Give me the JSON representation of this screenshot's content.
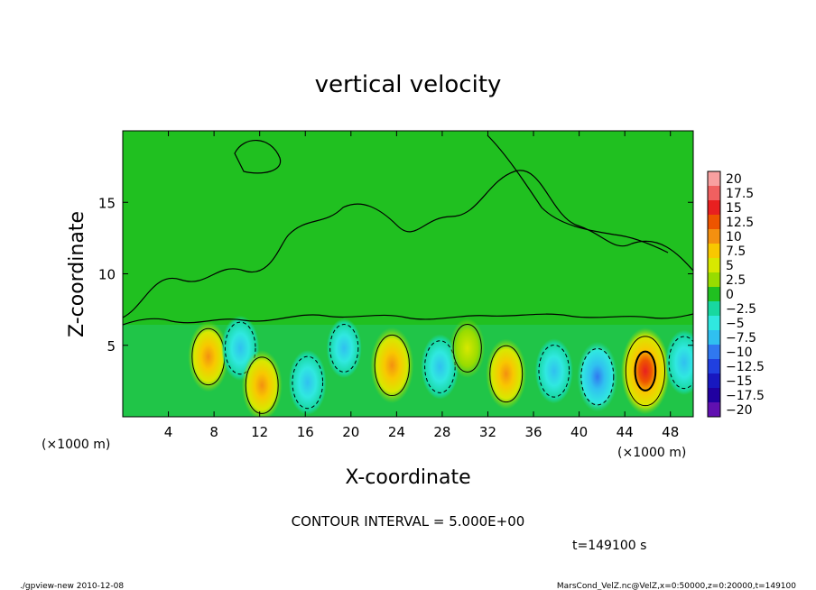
{
  "chart_data": {
    "type": "heatmap",
    "title": "vertical velocity",
    "xlabel": "X-coordinate",
    "ylabel": "Z-coordinate",
    "x_unit_label": "(×1000 m)",
    "x_unit_label_right": "(×1000 m)",
    "xlim": [
      0,
      50
    ],
    "ylim": [
      0,
      20
    ],
    "x_ticks": [
      4,
      8,
      12,
      16,
      20,
      24,
      28,
      32,
      36,
      40,
      44,
      48
    ],
    "y_ticks": [
      5,
      10,
      15
    ],
    "colorbar": {
      "labels": [
        "20",
        "17.5",
        "15",
        "12.5",
        "10",
        "7.5",
        "5",
        "2.5",
        "0",
        "−2.5",
        "−5",
        "−7.5",
        "−10",
        "−12.5",
        "−15",
        "−17.5",
        "−20"
      ],
      "colors": [
        "#f8a0a0",
        "#f06060",
        "#e82020",
        "#ee5500",
        "#f49010",
        "#f8c800",
        "#d8e800",
        "#98dc00",
        "#20c020",
        "#18d8a0",
        "#30e8e0",
        "#30c0f0",
        "#3078f0",
        "#2040e0",
        "#1818c0",
        "#2000a0",
        "#6010b0"
      ]
    },
    "contour_interval": "CONTOUR INTERVAL = 5.000E+00",
    "time_label": "t=149100 s",
    "features": [
      {
        "x": 7.5,
        "z": 4.2,
        "value": 7.5
      },
      {
        "x": 10.3,
        "z": 4.8,
        "value": -5
      },
      {
        "x": 12.2,
        "z": 2.2,
        "value": 7.5
      },
      {
        "x": 16.2,
        "z": 2.4,
        "value": -5
      },
      {
        "x": 19.4,
        "z": 4.8,
        "value": -2.5
      },
      {
        "x": 23.6,
        "z": 3.6,
        "value": 10
      },
      {
        "x": 27.8,
        "z": 3.5,
        "value": -5
      },
      {
        "x": 30.2,
        "z": 4.8,
        "value": 2.5
      },
      {
        "x": 33.6,
        "z": 3.0,
        "value": 7.5
      },
      {
        "x": 37.8,
        "z": 3.2,
        "value": -5
      },
      {
        "x": 41.6,
        "z": 2.8,
        "value": -7.5
      },
      {
        "x": 45.8,
        "z": 3.2,
        "value": 15
      },
      {
        "x": 49.2,
        "z": 3.8,
        "value": -5
      }
    ]
  },
  "footer": {
    "left": "./gpview-new  2010-12-08",
    "right": "MarsCond_VelZ.nc@VelZ,x=0:50000,z=0:20000,t=149100"
  }
}
